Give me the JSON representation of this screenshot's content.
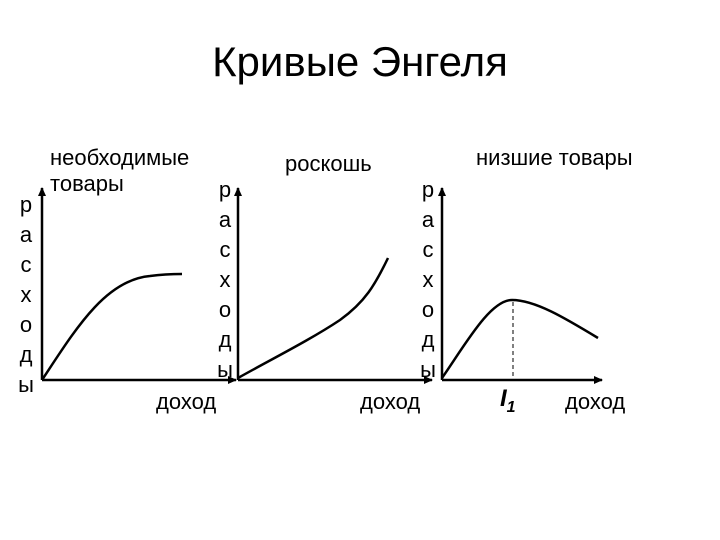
{
  "title": "Кривые Энгеля",
  "panels": [
    {
      "curve_label": [
        "необходимые",
        "товары"
      ],
      "y_axis_label": [
        "р",
        "а",
        "с",
        "х",
        "о",
        "д",
        "ы"
      ],
      "x_axis_label": "доход"
    },
    {
      "curve_label": [
        "роскошь"
      ],
      "y_axis_label": [
        "р",
        "а",
        "с",
        "х",
        "о",
        "д",
        "ы"
      ],
      "x_axis_label": "доход"
    },
    {
      "curve_label": [
        "низшие товары"
      ],
      "y_axis_label": [
        "р",
        "а",
        "с",
        "х",
        "о",
        "д",
        "ы"
      ],
      "x_axis_label": "доход",
      "marker_label": "I",
      "marker_subscript": "1"
    }
  ]
}
